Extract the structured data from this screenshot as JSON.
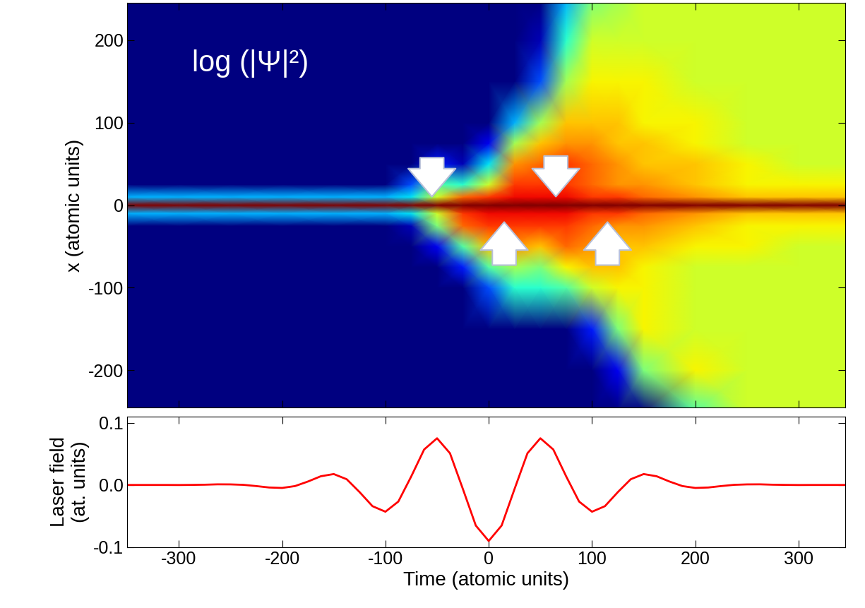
{
  "chart_data": [
    {
      "type": "heatmap",
      "annotation": "log (|Ψ|²)",
      "ylabel": "x (atomic units)",
      "x": [
        -350,
        -300,
        -250,
        -200,
        -150,
        -100,
        -75,
        -50,
        -25,
        0,
        25,
        50,
        75,
        100,
        125,
        150,
        200,
        250,
        300,
        350
      ],
      "y": [
        -250,
        -200,
        -150,
        -100,
        -75,
        -50,
        -25,
        -10,
        0,
        10,
        25,
        50,
        75,
        100,
        150,
        200,
        250
      ],
      "cells": [
        [
          0,
          0,
          0,
          0,
          0,
          0,
          0,
          0,
          0,
          0,
          0,
          0,
          0,
          0,
          0,
          0,
          0.45,
          0.6,
          0.6,
          0.6
        ],
        [
          0,
          0,
          0,
          0,
          0,
          0,
          0,
          0,
          0,
          0,
          0,
          0,
          0,
          0,
          0.1,
          0.5,
          0.65,
          0.6,
          0.6,
          0.6
        ],
        [
          0,
          0,
          0,
          0,
          0,
          0,
          0,
          0,
          0,
          0,
          0,
          0,
          0,
          0.15,
          0.5,
          0.65,
          0.6,
          0.6,
          0.6,
          0.6
        ],
        [
          0,
          0,
          0,
          0,
          0,
          0,
          0,
          0,
          0,
          0.2,
          0.4,
          0.4,
          0.45,
          0.6,
          0.65,
          0.65,
          0.6,
          0.6,
          0.6,
          0.6
        ],
        [
          0,
          0,
          0,
          0,
          0,
          0,
          0,
          0,
          0.15,
          0.45,
          0.55,
          0.5,
          0.65,
          0.7,
          0.7,
          0.65,
          0.6,
          0.6,
          0.6,
          0.6
        ],
        [
          0,
          0,
          0,
          0,
          0,
          0,
          0,
          0.1,
          0.45,
          0.7,
          0.75,
          0.7,
          0.8,
          0.75,
          0.7,
          0.7,
          0.65,
          0.65,
          0.6,
          0.6
        ],
        [
          0,
          0,
          0,
          0,
          0,
          0,
          0.05,
          0.5,
          0.8,
          0.85,
          0.85,
          0.85,
          0.85,
          0.8,
          0.75,
          0.75,
          0.7,
          0.65,
          0.65,
          0.65
        ],
        [
          0.3,
          0.3,
          0.3,
          0.3,
          0.3,
          0.3,
          0.35,
          0.6,
          0.85,
          0.9,
          0.9,
          0.9,
          0.9,
          0.85,
          0.85,
          0.8,
          0.75,
          0.7,
          0.7,
          0.7
        ],
        [
          1,
          1,
          1,
          1,
          1,
          1,
          1,
          1,
          1,
          1,
          1,
          1,
          1,
          1,
          1,
          1,
          1,
          1,
          1,
          1
        ],
        [
          0.3,
          0.3,
          0.3,
          0.3,
          0.3,
          0.3,
          0.35,
          0.6,
          0.8,
          0.85,
          0.9,
          0.9,
          0.9,
          0.85,
          0.85,
          0.8,
          0.75,
          0.7,
          0.7,
          0.7
        ],
        [
          0,
          0,
          0,
          0,
          0,
          0,
          0.2,
          0.45,
          0.4,
          0.6,
          0.85,
          0.85,
          0.85,
          0.8,
          0.75,
          0.75,
          0.7,
          0.65,
          0.65,
          0.65
        ],
        [
          0,
          0,
          0,
          0,
          0,
          0,
          0,
          0.15,
          0.05,
          0.35,
          0.75,
          0.8,
          0.85,
          0.8,
          0.75,
          0.7,
          0.7,
          0.65,
          0.6,
          0.6
        ],
        [
          0,
          0,
          0,
          0,
          0,
          0,
          0,
          0,
          0,
          0.1,
          0.55,
          0.7,
          0.75,
          0.75,
          0.7,
          0.7,
          0.65,
          0.6,
          0.6,
          0.6
        ],
        [
          0,
          0,
          0,
          0,
          0,
          0,
          0,
          0,
          0,
          0,
          0.3,
          0.55,
          0.7,
          0.7,
          0.7,
          0.65,
          0.65,
          0.6,
          0.6,
          0.6
        ],
        [
          0,
          0,
          0,
          0,
          0,
          0,
          0,
          0,
          0,
          0,
          0,
          0.2,
          0.55,
          0.65,
          0.65,
          0.65,
          0.6,
          0.6,
          0.6,
          0.6
        ],
        [
          0,
          0,
          0,
          0,
          0,
          0,
          0,
          0,
          0,
          0,
          0,
          0.05,
          0.4,
          0.6,
          0.6,
          0.6,
          0.6,
          0.6,
          0.6,
          0.6
        ],
        [
          0,
          0,
          0,
          0,
          0,
          0,
          0,
          0,
          0,
          0,
          0,
          0,
          0.3,
          0.5,
          0.55,
          0.6,
          0.6,
          0.6,
          0.6,
          0.6
        ]
      ],
      "value_range": [
        0,
        1
      ],
      "xlim": [
        -350,
        345
      ],
      "xticks": [
        -300,
        -200,
        -100,
        0,
        100,
        200,
        300
      ],
      "ylim": [
        -245,
        245
      ],
      "yticks": [
        -200,
        -100,
        0,
        100,
        200
      ],
      "tick_labels": "y"
    },
    {
      "type": "line",
      "xlabel": "Time (atomic units)",
      "ylabel": "Laser field\n(at. units)",
      "color": "#ff0000",
      "x": [
        -350,
        -337.5,
        -325,
        -312.5,
        -300,
        -287.5,
        -275,
        -262.5,
        -250,
        -237.5,
        -225,
        -212.5,
        -200,
        -187.5,
        -175,
        -162.5,
        -150,
        -137.5,
        -125,
        -112.5,
        -100,
        -87.5,
        -75,
        -62.5,
        -50,
        -37.5,
        -25,
        -12.5,
        0,
        12.5,
        25,
        37.5,
        50,
        62.5,
        75,
        87.5,
        100,
        112.5,
        125,
        137.5,
        150,
        162.5,
        175,
        187.5,
        200,
        212.5,
        225,
        237.5,
        250,
        262.5,
        275,
        287.5,
        300,
        312.5,
        325,
        337.5,
        350
      ],
      "values": [
        0,
        0,
        0,
        0,
        -0.0001,
        0.0001,
        0.0004,
        0.001,
        0.0009,
        0.0002,
        -0.0018,
        -0.0041,
        -0.0048,
        -0.0018,
        0.0055,
        0.014,
        0.0175,
        0.0092,
        -0.0115,
        -0.0341,
        -0.043,
        -0.0267,
        0.0137,
        0.057,
        0.075,
        0.0509,
        -0.0065,
        -0.0652,
        -0.09,
        -0.0652,
        -0.0065,
        0.0509,
        0.075,
        0.057,
        0.0137,
        -0.0267,
        -0.043,
        -0.0341,
        -0.0115,
        0.0092,
        0.0175,
        0.014,
        0.0055,
        -0.0018,
        -0.0048,
        -0.0041,
        -0.0018,
        0.0002,
        0.0009,
        0.001,
        0.0004,
        0.0001,
        -0.0001,
        0,
        0,
        0,
        0
      ],
      "xlim": [
        -350,
        345
      ],
      "xticks": [
        -300,
        -200,
        -100,
        0,
        100,
        200,
        300
      ],
      "ylim": [
        -0.1,
        0.11
      ],
      "yticks": [
        -0.1,
        {
          "value": 0,
          "label": "0.0"
        },
        0.1
      ]
    }
  ]
}
